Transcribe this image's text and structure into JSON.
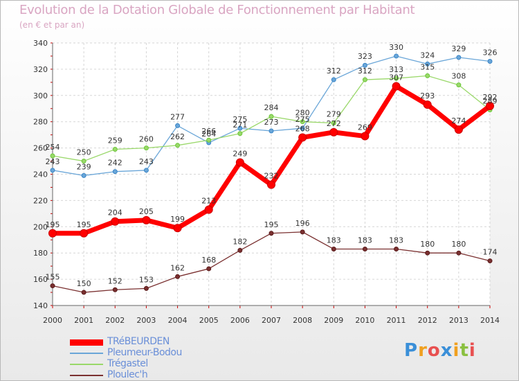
{
  "chart_data": {
    "type": "line",
    "title": "Evolution de la Dotation Globale de Fonctionnement par Habitant",
    "subtitle": "(en € et par an)",
    "xlabel": "",
    "ylabel": "",
    "ylim": [
      140,
      340
    ],
    "yticks": [
      140,
      160,
      180,
      200,
      220,
      240,
      260,
      280,
      300,
      320,
      340
    ],
    "categories": [
      "2000",
      "2001",
      "2002",
      "2003",
      "2004",
      "2005",
      "2006",
      "2007",
      "2008",
      "2009",
      "2010",
      "2011",
      "2012",
      "2013",
      "2014"
    ],
    "grid": true,
    "legend_position": "bottom-left",
    "series": [
      {
        "name": "TRéBEURDEN",
        "values": [
          195,
          195,
          204,
          205,
          199,
          213,
          249,
          232,
          268,
          272,
          269,
          307,
          293,
          274,
          292
        ],
        "color": "#ff0000",
        "marker": "#cc0000",
        "emphasis": true
      },
      {
        "name": "Pleumeur-Bodou",
        "values": [
          243,
          239,
          242,
          243,
          277,
          264,
          275,
          273,
          275,
          312,
          323,
          330,
          324,
          329,
          326
        ],
        "color": "#6aa6d8",
        "marker": "#3a86c8",
        "emphasis": false
      },
      {
        "name": "Trégastel",
        "values": [
          254,
          250,
          259,
          260,
          262,
          266,
          271,
          284,
          280,
          279,
          312,
          313,
          315,
          308,
          289
        ],
        "color": "#9ad86a",
        "marker": "#6cc83a",
        "emphasis": false
      },
      {
        "name": "Ploulec'h",
        "values": [
          155,
          150,
          152,
          153,
          162,
          168,
          182,
          195,
          196,
          183,
          183,
          183,
          180,
          180,
          174
        ],
        "color": "#7a3030",
        "marker": "#5a1a1a",
        "emphasis": false
      }
    ]
  },
  "logo": {
    "letters": [
      "P",
      "r",
      "o",
      "x",
      "i",
      "t",
      "i"
    ],
    "colors": [
      "#3a8fd8",
      "#f0a020",
      "#e85050",
      "#3a8fd8",
      "#f0a020",
      "#8ac040",
      "#e85050"
    ]
  }
}
